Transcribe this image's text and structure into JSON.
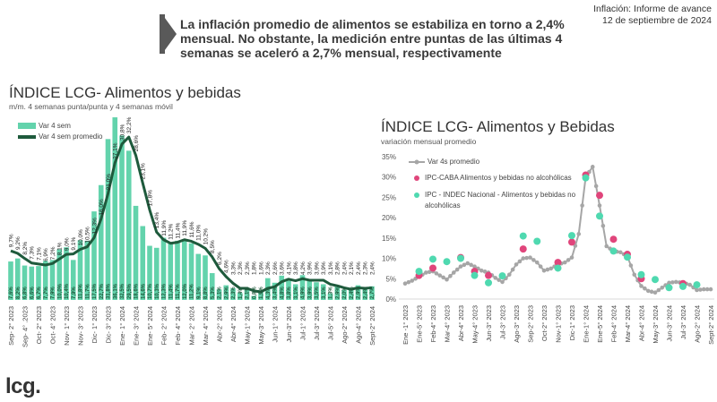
{
  "header": {
    "headline": "La inflación promedio de alimentos se estabiliza en torno a 2,4% mensual. No obstante, la medición entre puntas de las últimas 4 semanas se aceleró a 2,7% mensual, respectivamente",
    "report_title": "Inflación: Informe de avance",
    "report_date": "12 de septiembre de 2024"
  },
  "logo": "lcg.",
  "colors": {
    "bar": "#63d3ac",
    "avg_line": "#1e5a3c",
    "gray_line": "#a6a6a6",
    "caba": "#e0457b",
    "indec": "#4fd9b0",
    "header_arrow": "#595959"
  },
  "chart_data": [
    {
      "type": "bar",
      "title": "ÍNDICE LCG- Alimentos y bebidas",
      "subtitle": "m/m. 4 semanas punta/punta y 4 semanas móvil",
      "legend_position": "top-left",
      "grid": false,
      "x_tick_labels": [
        "Sep- 2° 2023",
        "Sep- 4° .2023",
        "Oct- 2° 2023",
        "Oct- 4° 2023",
        "Nov- 1° 2023",
        "Nov- 3° 2023",
        "Dic- 1° 2023",
        "Dic- 3° 2023",
        "Ene- 1° 2024",
        "Ene- 3° 2024",
        "Ene- 5° 2024",
        "Feb- 2° 2024",
        "Feb- 4° 2024",
        "Mar- 2° 2024",
        "Mar- 4° 2024",
        "Abr-2° 2024",
        "Abr-4° 2024",
        "May-1° 2024",
        "May-3° 2024",
        "Jun-1° 2024",
        "Jun-3° 2024",
        "Jul-1° 2024",
        "Jul-3° 2024",
        "Jul-5° 2024",
        "Ago-2° 2024",
        "Ago-4° 2024",
        "Sept-2° 2024"
      ],
      "series": [
        {
          "name": "Var 4 sem",
          "kind": "bar",
          "values": [
            7.6,
            8.2,
            6.8,
            6.6,
            6.7,
            7.7,
            7.9,
            10.0,
            10.4,
            7.9,
            11.8,
            11.7,
            17.5,
            22.7,
            31.8,
            36.1,
            32.5,
            29.5,
            18.6,
            14.6,
            10.7,
            10.3,
            12.3,
            11.4,
            11.7,
            12.0,
            11.2,
            9.1,
            8.8,
            5.3,
            2.1,
            2.9,
            2.3,
            1.4,
            2.1,
            0.8,
            1.9,
            4.3,
            3.4,
            4.8,
            3.8,
            3.1,
            4.9,
            3.9,
            3.5,
            3.1,
            1.3,
            2.9,
            2.0,
            2.4,
            2.9,
            2.4,
            2.7
          ]
        },
        {
          "name": "Var 4 sem promedio",
          "kind": "line",
          "values": [
            9.7,
            9.2,
            8.2,
            7.3,
            7.1,
            6.9,
            7.2,
            8.1,
            9.0,
            9.1,
            10.0,
            10.5,
            12.3,
            16.0,
            21.0,
            27.1,
            30.8,
            32.2,
            28.6,
            23.1,
            17.8,
            13.4,
            11.9,
            11.2,
            11.4,
            11.9,
            11.6,
            11.0,
            10.2,
            8.5,
            6.2,
            4.6,
            3.3,
            2.3,
            2.3,
            1.8,
            1.6,
            2.3,
            2.6,
            3.6,
            4.1,
            3.8,
            4.2,
            3.9,
            3.9,
            3.9,
            3.1,
            2.8,
            2.4,
            2.1,
            2.4,
            2.3,
            2.4
          ]
        }
      ]
    },
    {
      "type": "line",
      "title": "ÍNDICE LCG- Alimentos y Bebidas",
      "subtitle": "variación mensual promedio",
      "legend_position": "top-left",
      "grid": false,
      "ylim": [
        0,
        35
      ],
      "y_tick_labels": [
        "0%",
        "5%",
        "10%",
        "15%",
        "20%",
        "25%",
        "30%",
        "35%"
      ],
      "x_tick_labels": [
        "Ene -1° 2023",
        "Ene-5° 2023",
        "Feb-4° 2023",
        "Mar-4° 2023",
        "Abr-4° 2023",
        "May-4° 2023",
        "Jun-3° 2023",
        "Jul-3° 2023",
        "Ago-3° 2023",
        "Sep-2° 2023",
        "Oct-2° 2023",
        "Nov-1° 2023",
        "Dic-1° 2023",
        "Ene-1° 2024",
        "Ene-5° 2024",
        "Feb-4° 2024",
        "Mar-4° 2024",
        "Abr-4° 2024",
        "May-3° 2024",
        "Jun-3° 2024",
        "Jul-3° 2024",
        "Ago-2° 2024",
        "Sept-2° 2024"
      ],
      "series": [
        {
          "name": "Var 4s promedio",
          "kind": "line",
          "x": [
            0,
            0.5,
            1,
            1.5,
            2,
            2.5,
            3,
            3.5,
            4,
            4.5,
            5,
            5.5,
            6,
            6.5,
            7,
            7.5,
            8,
            8.5,
            9,
            9.5,
            10,
            10.5,
            11,
            11.5,
            12,
            12.5,
            13,
            13.5,
            14,
            14.5,
            15,
            15.5,
            16,
            16.5,
            17,
            17.5,
            18,
            18.5,
            19,
            19.5,
            20,
            20.5,
            21,
            21.5,
            22
          ],
          "values": [
            3.8,
            4.5,
            5.5,
            6.5,
            6.8,
            5.8,
            4.8,
            6.5,
            8.0,
            8.8,
            8.0,
            7.0,
            6.5,
            5.2,
            4.2,
            6.0,
            8.5,
            10.0,
            10.2,
            9.0,
            7.0,
            7.5,
            8.5,
            9.0,
            10.2,
            16.0,
            30.0,
            32.5,
            23.0,
            13.0,
            11.8,
            11.5,
            10.5,
            6.0,
            3.2,
            2.0,
            1.6,
            2.8,
            4.0,
            4.2,
            4.0,
            3.5,
            2.2,
            2.4,
            2.4
          ]
        },
        {
          "name": "IPC-CABA Alimentos y bebidas no alcohólicas",
          "kind": "scatter",
          "x": [
            1,
            2,
            4,
            5,
            6,
            8.5,
            11,
            12,
            13,
            14,
            15,
            16,
            17,
            20
          ],
          "values": [
            5.8,
            7.6,
            10.2,
            6.8,
            5.8,
            12.3,
            9.0,
            14.0,
            30.5,
            25.5,
            14.7,
            11.0,
            5.0,
            3.8
          ]
        },
        {
          "name": "IPC - INDEC Nacional - Alimentos y bebidas no alcohólicas",
          "kind": "scatter",
          "x": [
            1,
            2,
            3,
            4,
            5,
            6,
            7,
            8.5,
            9.5,
            11,
            12,
            13,
            14,
            15,
            16,
            17,
            18,
            19,
            20,
            21
          ],
          "values": [
            6.8,
            9.8,
            9.2,
            10.0,
            5.8,
            4.0,
            5.7,
            15.5,
            14.2,
            7.6,
            15.6,
            29.8,
            20.4,
            11.8,
            10.3,
            6.0,
            4.8,
            2.8,
            3.1,
            3.5
          ]
        }
      ]
    }
  ]
}
